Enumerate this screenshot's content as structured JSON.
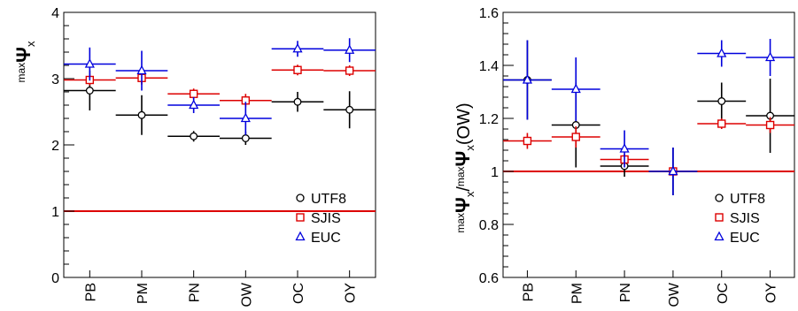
{
  "colors": {
    "utf8": "#000000",
    "sjis": "#dd0000",
    "euc": "#0000dd",
    "ref_line": "#dd0000",
    "axis": "#000000"
  },
  "chart_data": [
    {
      "type": "scatter",
      "ylabel_prefix": "max",
      "ylabel_main": "Ψ",
      "ylabel_sub": "x",
      "categories": [
        "PB",
        "PM",
        "PN",
        "OW",
        "OC",
        "OY"
      ],
      "ylim": [
        0,
        4
      ],
      "yticks": [
        0,
        1,
        2,
        3,
        4
      ],
      "ytick_labels": [
        "0",
        "1",
        "2",
        "3",
        "4"
      ],
      "reference_line": 1,
      "grid": false,
      "legend_position": "bottom-right",
      "series": [
        {
          "name": "UTF8",
          "marker": "circle",
          "values": [
            2.82,
            2.45,
            2.13,
            2.1,
            2.65,
            2.53
          ],
          "err": [
            0.3,
            0.3,
            0.08,
            0.1,
            0.15,
            0.28
          ]
        },
        {
          "name": "SJIS",
          "marker": "square",
          "values": [
            2.98,
            3.01,
            2.77,
            2.67,
            3.13,
            3.12
          ],
          "err": [
            0.08,
            0.1,
            0.08,
            0.1,
            0.08,
            0.08
          ]
        },
        {
          "name": "EUC",
          "marker": "triangle",
          "values": [
            3.22,
            3.12,
            2.6,
            2.4,
            3.45,
            3.43
          ],
          "err": [
            0.25,
            0.3,
            0.12,
            0.25,
            0.12,
            0.18
          ]
        }
      ]
    },
    {
      "type": "scatter",
      "ylabel_prefix": "max",
      "ylabel_main": "Ψ",
      "ylabel_sub": "x",
      "ylabel_sep": "/",
      "ylabel_prefix2": "max",
      "ylabel_main2": "Ψ",
      "ylabel_sub2": "x",
      "ylabel_suffix": "(OW)",
      "categories": [
        "PB",
        "PM",
        "PN",
        "OW",
        "OC",
        "OY"
      ],
      "ylim": [
        0.6,
        1.6
      ],
      "yticks": [
        0.6,
        0.8,
        1.0,
        1.2,
        1.4,
        1.6
      ],
      "ytick_labels": [
        "0.6",
        "0.8",
        "1",
        "1.2",
        "1.4",
        "1.6"
      ],
      "reference_line": 1,
      "grid": false,
      "legend_position": "bottom-right",
      "series": [
        {
          "name": "UTF8",
          "marker": "circle",
          "values": [
            1.345,
            1.175,
            1.02,
            1.0,
            1.265,
            1.21
          ],
          "err": [
            0.15,
            0.16,
            0.04,
            0.09,
            0.07,
            0.14
          ]
        },
        {
          "name": "SJIS",
          "marker": "square",
          "values": [
            1.115,
            1.13,
            1.045,
            1.0,
            1.18,
            1.175
          ],
          "err": [
            0.03,
            0.04,
            0.02,
            0.01,
            0.02,
            0.03
          ]
        },
        {
          "name": "EUC",
          "marker": "triangle",
          "values": [
            1.345,
            1.31,
            1.085,
            1.0,
            1.445,
            1.43
          ],
          "err": [
            0.15,
            0.12,
            0.07,
            0.09,
            0.05,
            0.07
          ]
        }
      ]
    }
  ]
}
